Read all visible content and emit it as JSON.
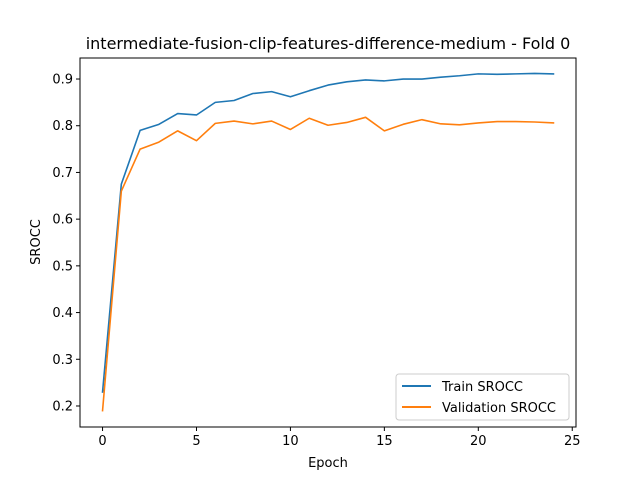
{
  "chart_data": {
    "type": "line",
    "title": "intermediate-fusion-clip-features-difference-medium - Fold 0",
    "xlabel": "Epoch",
    "ylabel": "SROCC",
    "xlim": [
      -1.2,
      25.2
    ],
    "ylim": [
      0.155,
      0.945
    ],
    "xticks": [
      0,
      5,
      10,
      15,
      20,
      25
    ],
    "yticks": [
      0.2,
      0.3,
      0.4,
      0.5,
      0.6,
      0.7,
      0.8,
      0.9
    ],
    "xtick_labels": [
      "0",
      "5",
      "10",
      "15",
      "20",
      "25"
    ],
    "ytick_labels": [
      "0.2",
      "0.3",
      "0.4",
      "0.5",
      "0.6",
      "0.7",
      "0.8",
      "0.9"
    ],
    "grid": false,
    "legend_position": "lower-right",
    "x": [
      0,
      1,
      2,
      3,
      4,
      5,
      6,
      7,
      8,
      9,
      10,
      11,
      12,
      13,
      14,
      15,
      16,
      17,
      18,
      19,
      20,
      21,
      22,
      23,
      24
    ],
    "series": [
      {
        "name": "Train SROCC",
        "color": "#1f77b4",
        "values": [
          0.23,
          0.675,
          0.79,
          0.803,
          0.826,
          0.823,
          0.85,
          0.854,
          0.869,
          0.873,
          0.862,
          0.875,
          0.887,
          0.894,
          0.898,
          0.896,
          0.9,
          0.9,
          0.904,
          0.907,
          0.911,
          0.91,
          0.911,
          0.912,
          0.911
        ]
      },
      {
        "name": "Validation SROCC",
        "color": "#ff7f0e",
        "values": [
          0.19,
          0.66,
          0.75,
          0.765,
          0.789,
          0.768,
          0.805,
          0.81,
          0.804,
          0.81,
          0.792,
          0.816,
          0.801,
          0.807,
          0.818,
          0.789,
          0.803,
          0.813,
          0.804,
          0.802,
          0.806,
          0.809,
          0.809,
          0.808,
          0.806
        ]
      }
    ]
  }
}
